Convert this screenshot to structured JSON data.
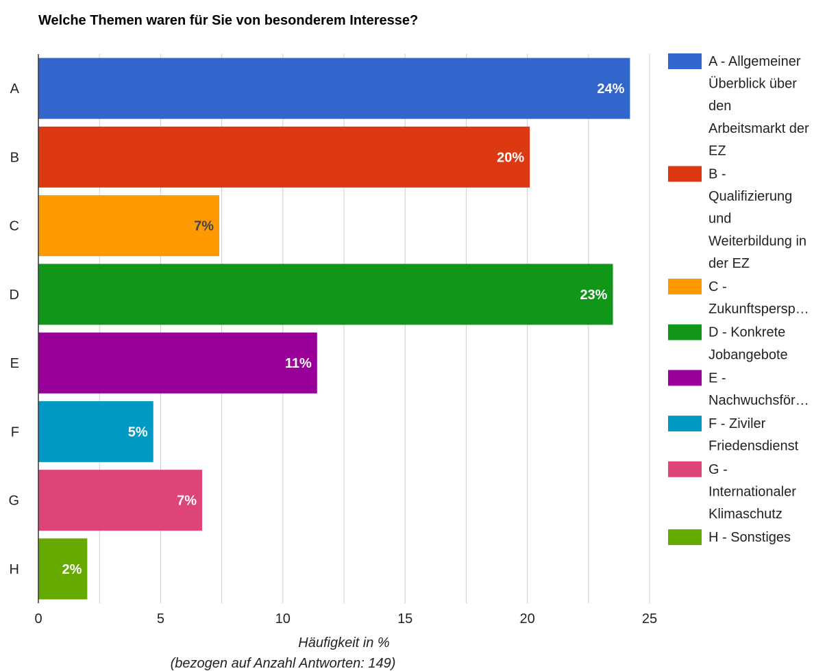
{
  "chart_data": {
    "type": "bar",
    "orientation": "horizontal",
    "title": "Welche Themen waren für Sie von besonderem Interesse?",
    "xlabel": "Häufigkeit in %",
    "xlabel_sub": "(bezogen auf Anzahl Antworten: 149)",
    "ylabel": "",
    "xlim": [
      0,
      25
    ],
    "x_ticks": [
      "0",
      "5",
      "10",
      "15",
      "20",
      "25"
    ],
    "grid": true,
    "legend_position": "right",
    "categories": [
      "A",
      "B",
      "C",
      "D",
      "E",
      "F",
      "G",
      "H"
    ],
    "values": [
      24.2,
      20.1,
      7.4,
      23.5,
      11.4,
      4.7,
      6.7,
      2.0
    ],
    "data_labels": [
      "24%",
      "20%",
      "7%",
      "23%",
      "11%",
      "5%",
      "7%",
      "2%"
    ],
    "colors": [
      "#3366cc",
      "#dc3912",
      "#ff9900",
      "#109618",
      "#990099",
      "#0099c6",
      "#dd4477",
      "#66aa00"
    ],
    "data_label_colors": [
      "#ffffff",
      "#ffffff",
      "#444444",
      "#ffffff",
      "#ffffff",
      "#ffffff",
      "#ffffff",
      "#ffffff"
    ],
    "legend": [
      [
        "A - Allgemeiner",
        "Überblick über",
        "den",
        "Arbeitsmarkt der",
        "EZ"
      ],
      [
        "B -",
        "Qualifizierung",
        "und",
        "Weiterbildung in",
        "der EZ"
      ],
      [
        "C -",
        "Zukunftspersp…"
      ],
      [
        "D - Konkrete",
        "Jobangebote"
      ],
      [
        "E -",
        "Nachwuchsför…"
      ],
      [
        "F - Ziviler",
        "Friedensdienst"
      ],
      [
        "G -",
        "Internationaler",
        "Klimaschutz"
      ],
      [
        "H - Sonstiges"
      ]
    ]
  }
}
